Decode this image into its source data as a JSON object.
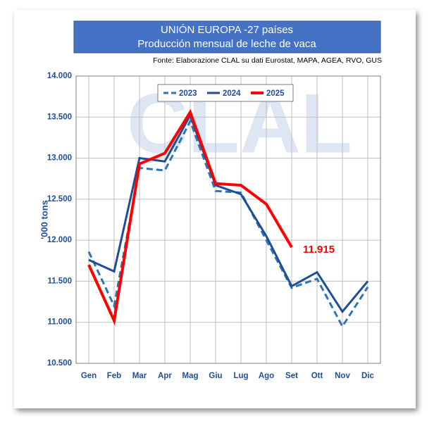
{
  "chart_data": {
    "type": "line",
    "title": "UNIÓN EUROPA -27 países",
    "subtitle": "Producción mensual de leche de vaca",
    "source": "Fonte: Elaborazione CLAL su dati Eurostat, MAPA, AGEA, RVO, GUS",
    "watermark": "CLAL",
    "ylabel": "'000 tons",
    "categories": [
      "Gen",
      "Feb",
      "Mar",
      "Apr",
      "Mag",
      "Giu",
      "Lug",
      "Ago",
      "Set",
      "Ott",
      "Nov",
      "Dic"
    ],
    "series": [
      {
        "name": "2023",
        "color": "#2e75b6",
        "dashed": true,
        "values": [
          11860,
          11200,
          12880,
          12850,
          13450,
          12600,
          12580,
          12000,
          11420,
          11530,
          10950,
          11430
        ]
      },
      {
        "name": "2024",
        "color": "#1f4e99",
        "dashed": false,
        "values": [
          11760,
          11620,
          13000,
          12960,
          13520,
          12670,
          12560,
          12050,
          11440,
          11610,
          11130,
          11500
        ]
      },
      {
        "name": "2025",
        "color": "#ff0000",
        "dashed": false,
        "values": [
          11700,
          11020,
          12930,
          13060,
          13560,
          12690,
          12670,
          12440,
          11915,
          null,
          null,
          null
        ],
        "value_labels": [
          null,
          null,
          null,
          null,
          null,
          null,
          null,
          null,
          "11.915",
          null,
          null,
          null
        ]
      }
    ],
    "ylim": [
      10500,
      14000
    ],
    "yticks": [
      {
        "value": 10500,
        "label": "10.500"
      },
      {
        "value": 11000,
        "label": "11.000"
      },
      {
        "value": 11500,
        "label": "11.500"
      },
      {
        "value": 12000,
        "label": "12.000"
      },
      {
        "value": 12500,
        "label": "12.500"
      },
      {
        "value": 13000,
        "label": "13.000"
      },
      {
        "value": 13500,
        "label": "13.500"
      },
      {
        "value": 14000,
        "label": "14.000"
      }
    ],
    "grid": true,
    "legend": "top"
  }
}
